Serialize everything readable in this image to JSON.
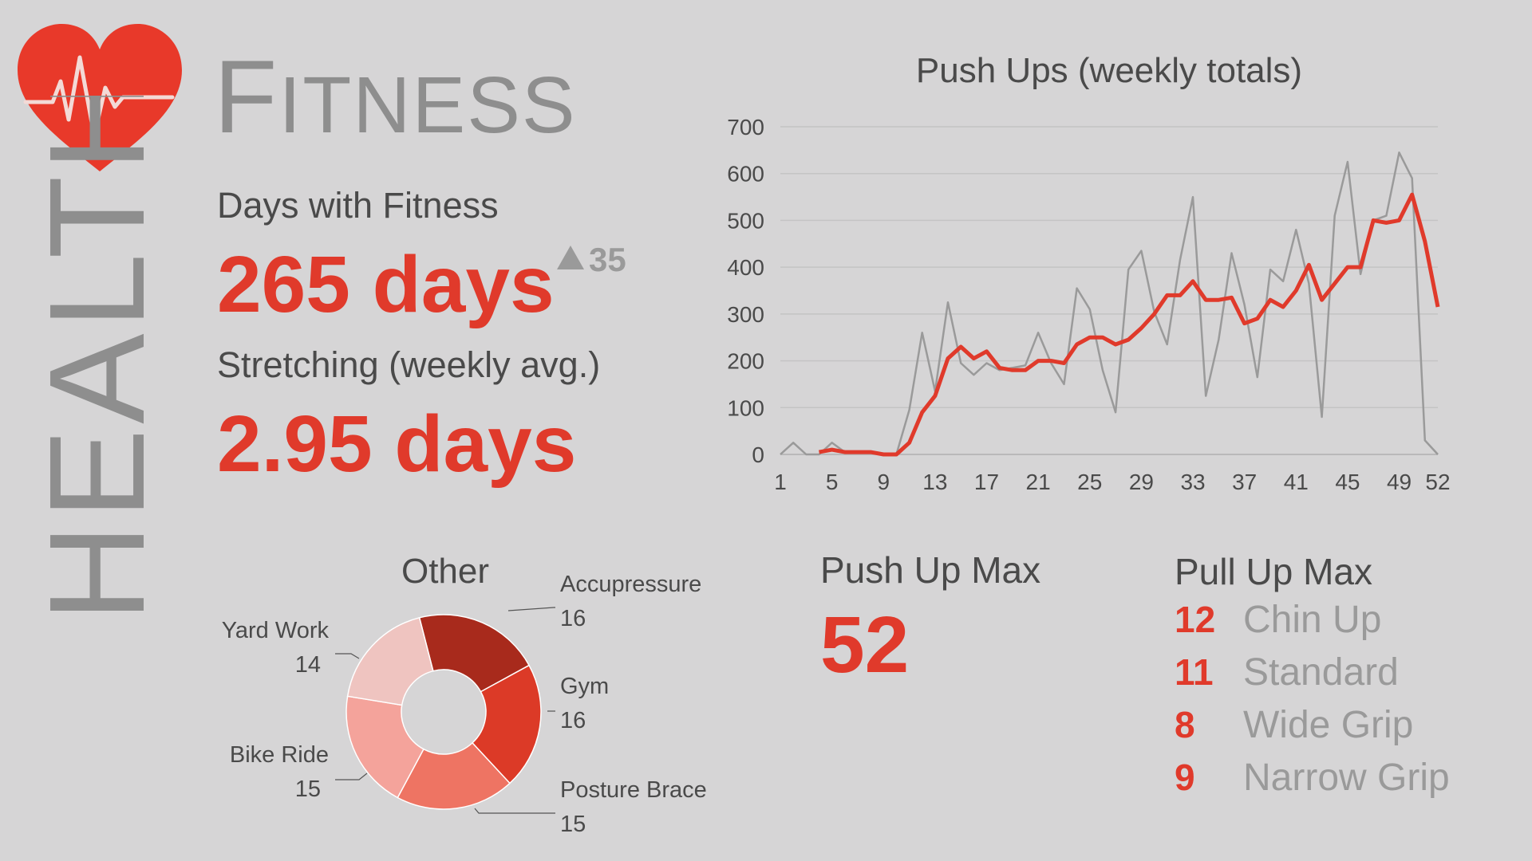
{
  "header": {
    "vertical_title": "HEALTH",
    "title_first": "F",
    "title_rest": "ITNESS"
  },
  "icons": {
    "logo": "heart-with-heartbeat-icon"
  },
  "colors": {
    "accent": "#e03a2b",
    "background": "#d6d5d6",
    "muted": "#9a9a9a",
    "text": "#4a4a4a"
  },
  "metrics": {
    "days_label": "Days with Fitness",
    "days_value": "265 days",
    "days_delta": "35",
    "stretch_label": "Stretching (weekly avg.)",
    "stretch_value": "2.95 days"
  },
  "push_up_max": {
    "label": "Push Up Max",
    "value": "52"
  },
  "pull_up_max": {
    "label": "Pull Up Max",
    "items": [
      {
        "count": "12",
        "name": "Chin Up"
      },
      {
        "count": "11",
        "name": "Standard"
      },
      {
        "count": "8",
        "name": "Wide Grip"
      },
      {
        "count": "9",
        "name": "Narrow Grip"
      }
    ]
  },
  "chart_data": [
    {
      "type": "line",
      "title": "Push Ups (weekly totals)",
      "xlabel": "",
      "ylabel": "",
      "xlim": [
        1,
        52
      ],
      "ylim": [
        0,
        700
      ],
      "x_ticks": [
        1,
        5,
        9,
        13,
        17,
        21,
        25,
        29,
        33,
        37,
        41,
        45,
        49,
        52
      ],
      "y_ticks": [
        0,
        100,
        200,
        300,
        400,
        500,
        600,
        700
      ],
      "grid": true,
      "legend": "none",
      "x": [
        1,
        2,
        3,
        4,
        5,
        6,
        7,
        8,
        9,
        10,
        11,
        12,
        13,
        14,
        15,
        16,
        17,
        18,
        19,
        20,
        21,
        22,
        23,
        24,
        25,
        26,
        27,
        28,
        29,
        30,
        31,
        32,
        33,
        34,
        35,
        36,
        37,
        38,
        39,
        40,
        41,
        42,
        43,
        44,
        45,
        46,
        47,
        48,
        49,
        50,
        51,
        52
      ],
      "series": [
        {
          "color": "#9a9a9a",
          "values": [
            0,
            25,
            0,
            0,
            25,
            5,
            5,
            5,
            0,
            0,
            95,
            260,
            135,
            325,
            195,
            170,
            195,
            180,
            185,
            190,
            260,
            195,
            150,
            355,
            310,
            180,
            90,
            395,
            435,
            305,
            235,
            415,
            550,
            125,
            245,
            430,
            320,
            165,
            395,
            370,
            480,
            365,
            80,
            510,
            625,
            385,
            500,
            510,
            645,
            590,
            30,
            0
          ]
        },
        {
          "color": "#e03a2b",
          "values": [
            null,
            null,
            null,
            5,
            10,
            5,
            5,
            5,
            0,
            0,
            25,
            90,
            125,
            205,
            230,
            205,
            220,
            185,
            180,
            180,
            200,
            200,
            195,
            235,
            250,
            250,
            235,
            245,
            270,
            300,
            340,
            340,
            370,
            330,
            330,
            335,
            280,
            290,
            330,
            315,
            350,
            405,
            330,
            365,
            400,
            400,
            500,
            495,
            500,
            555,
            455,
            315
          ]
        }
      ]
    },
    {
      "type": "pie",
      "title": "Other",
      "donut": true,
      "categories": [
        "Accupressure",
        "Gym",
        "Posture Brace",
        "Bike Ride",
        "Yard Work"
      ],
      "values": [
        16,
        16,
        15,
        15,
        14
      ],
      "colors": [
        "#a82a1c",
        "#dc3a27",
        "#ee7463",
        "#f4a39b",
        "#efc4c0"
      ]
    }
  ]
}
